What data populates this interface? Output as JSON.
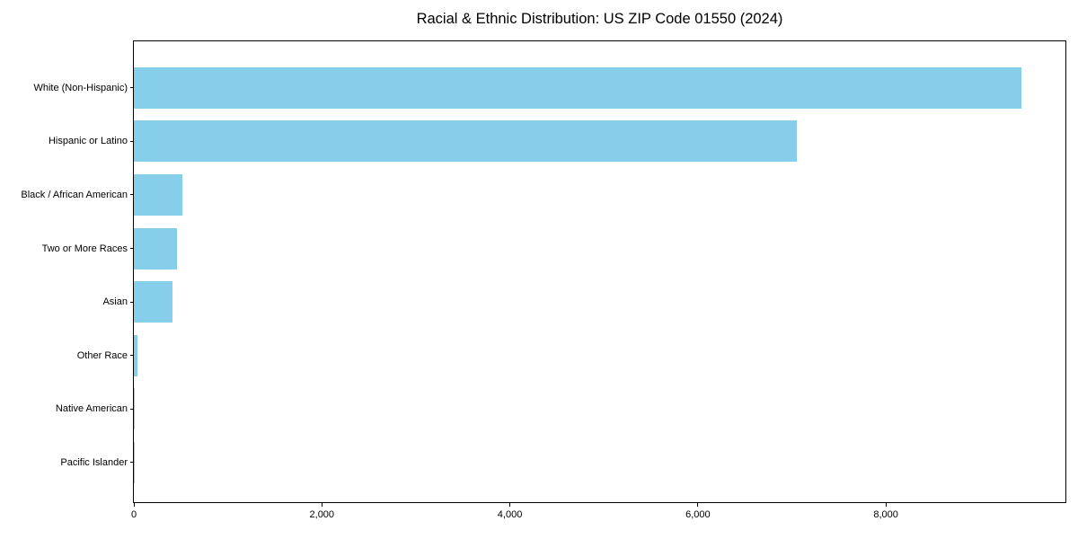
{
  "chart_data": {
    "type": "bar",
    "orientation": "horizontal",
    "title": "Racial & Ethnic Distribution: US ZIP Code 01550 (2024)",
    "categories": [
      "White (Non-Hispanic)",
      "Hispanic or Latino",
      "Black / African American",
      "Two or More Races",
      "Asian",
      "Other Race",
      "Native American",
      "Pacific Islander"
    ],
    "values": [
      9440,
      7050,
      513,
      456,
      414,
      38,
      8,
      2
    ],
    "xlabel": "",
    "ylabel": "",
    "xlim": [
      0,
      9910
    ],
    "x_ticks": [
      0,
      2000,
      4000,
      6000,
      8000
    ],
    "x_tick_labels": [
      "0",
      "2,000",
      "4,000",
      "6,000",
      "8,000"
    ],
    "bar_color": "#87CEEB",
    "spine_color": "#000000",
    "grid": false,
    "legend": null
  }
}
